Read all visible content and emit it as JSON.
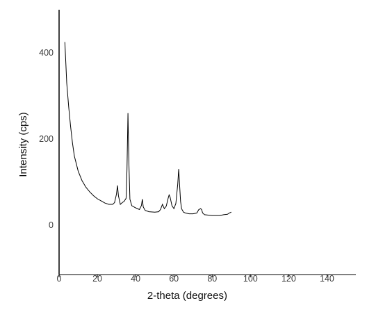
{
  "chart_data": {
    "type": "line",
    "title": "",
    "xlabel": "2-theta (degrees)",
    "ylabel": "Intensity (cps)",
    "xlim": [
      0,
      150
    ],
    "ylim": [
      -115,
      500
    ],
    "x_ticks": [
      0,
      20,
      40,
      60,
      80,
      100,
      120,
      140
    ],
    "y_ticks": [
      0,
      200,
      400
    ],
    "x_tick_labels": [
      "0",
      "20",
      "40",
      "60",
      "80",
      "100",
      "120",
      "140"
    ],
    "y_tick_labels": [
      "0",
      "200",
      "400"
    ],
    "grid": false,
    "legend": "none",
    "line_color": "#000000",
    "series": [
      {
        "x": [
          3,
          3.5,
          4,
          5,
          6,
          7,
          8,
          10,
          12,
          14,
          16,
          18,
          20,
          22,
          24,
          26,
          28,
          29,
          30,
          30.5,
          31,
          32,
          33,
          34,
          35,
          35.5,
          36,
          36.5,
          37,
          38,
          40,
          42,
          43,
          43.5,
          44,
          45,
          47,
          50,
          52,
          53,
          54,
          55,
          56,
          57,
          57.5,
          58,
          59,
          60,
          61,
          62,
          62.5,
          63,
          63.5,
          64,
          65,
          66,
          68,
          70,
          72,
          73,
          74,
          74.5,
          75,
          76,
          78,
          80,
          82,
          84,
          86,
          88,
          89,
          90
        ],
        "y": [
          425,
          380,
          330,
          275,
          230,
          190,
          160,
          125,
          103,
          88,
          77,
          68,
          61,
          56,
          51,
          48,
          48,
          52,
          72,
          92,
          68,
          48,
          52,
          55,
          62,
          130,
          260,
          140,
          60,
          45,
          40,
          36,
          45,
          60,
          42,
          34,
          31,
          30,
          31,
          36,
          48,
          38,
          44,
          62,
          70,
          65,
          45,
          38,
          50,
          95,
          130,
          90,
          55,
          38,
          30,
          28,
          26,
          26,
          28,
          36,
          38,
          36,
          28,
          24,
          23,
          22,
          22,
          22,
          24,
          25,
          28,
          30
        ]
      }
    ]
  }
}
